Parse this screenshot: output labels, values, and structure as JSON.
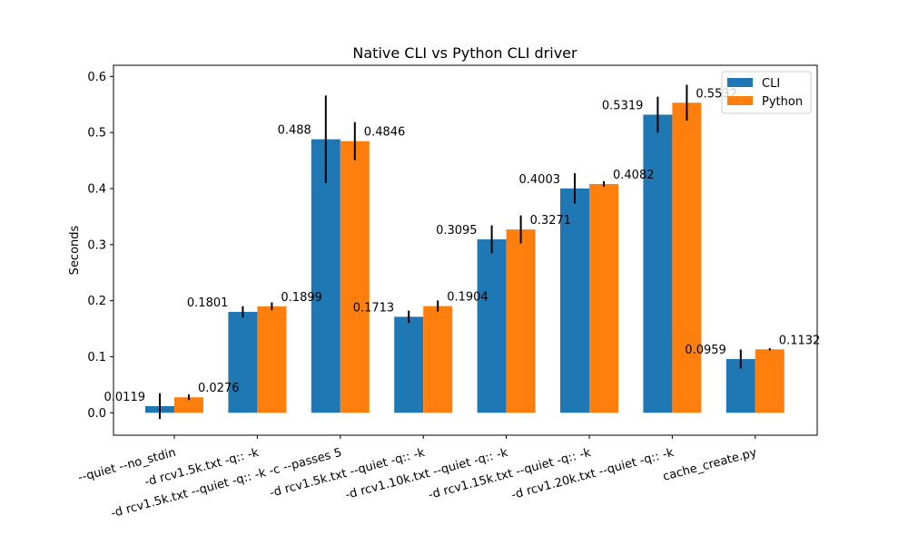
{
  "chart_data": {
    "type": "bar",
    "title": "Native CLI vs Python CLI driver",
    "xlabel": "",
    "ylabel": "Seconds",
    "ylim": [
      -0.04,
      0.62
    ],
    "yticks": [
      "0.0",
      "0.1",
      "0.2",
      "0.3",
      "0.4",
      "0.5",
      "0.6"
    ],
    "ytick_values": [
      0.0,
      0.1,
      0.2,
      0.3,
      0.4,
      0.5,
      0.6
    ],
    "grid": false,
    "legend_position": "top-right",
    "categories": [
      "--quiet --no_stdin",
      "-d rcv1.5k.txt -q:: -k",
      "-d rcv1.5k.txt --quiet -q:: -k -c --passes 5",
      "-d rcv1.5k.txt --quiet -q:: -k",
      "-d rcv1.10k.txt --quiet -q:: -k",
      "-d rcv1.15k.txt --quiet -q:: -k",
      "-d rcv1.20k.txt --quiet -q:: -k",
      "cache_create.py"
    ],
    "series": [
      {
        "name": "CLI",
        "color": "#1f77b4",
        "values": [
          0.0119,
          0.1801,
          0.488,
          0.1713,
          0.3095,
          0.4003,
          0.5319,
          0.0959
        ],
        "labels": [
          "0.0119",
          "0.1801",
          "0.488",
          "0.1713",
          "0.3095",
          "0.4003",
          "0.5319",
          "0.0959"
        ],
        "errors": [
          0.023,
          0.01,
          0.078,
          0.011,
          0.025,
          0.027,
          0.032,
          0.017
        ]
      },
      {
        "name": "Python",
        "color": "#ff7f0e",
        "values": [
          0.0276,
          0.1899,
          0.4846,
          0.1904,
          0.3271,
          0.4082,
          0.5532,
          0.1132
        ],
        "labels": [
          "0.0276",
          "0.1899",
          "0.4846",
          "0.1904",
          "0.3271",
          "0.4082",
          "0.5532",
          "0.1132"
        ],
        "errors": [
          0.005,
          0.007,
          0.034,
          0.01,
          0.025,
          0.005,
          0.032,
          0.002
        ]
      }
    ]
  }
}
